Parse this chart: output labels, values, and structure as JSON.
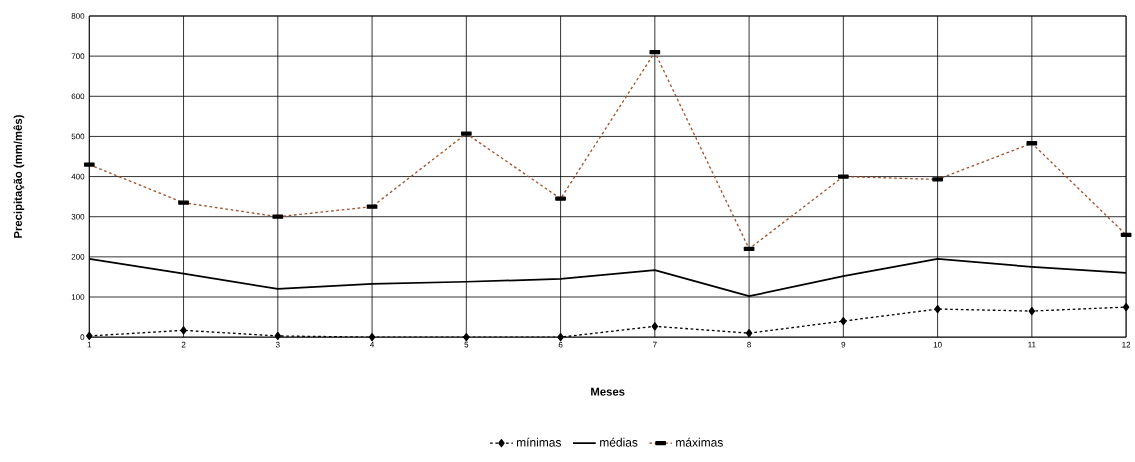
{
  "chart_data": {
    "type": "line",
    "xlabel": "Meses",
    "ylabel": "Precipitação (mm/mês)",
    "x": [
      1,
      2,
      3,
      4,
      5,
      6,
      7,
      8,
      9,
      10,
      11,
      12
    ],
    "xlim": [
      1,
      12
    ],
    "xticks": [
      1,
      2,
      3,
      4,
      5,
      6,
      7,
      8,
      9,
      10,
      11,
      12
    ],
    "ylim": [
      0,
      800
    ],
    "yticks": [
      0,
      100,
      200,
      300,
      400,
      500,
      600,
      700,
      800
    ],
    "grid": true,
    "legend": "bottom",
    "series": [
      {
        "name": "mínimas",
        "color": "#000000",
        "marker": "diamond",
        "line_style": "dotted",
        "values": [
          3,
          17,
          3,
          0,
          0,
          0,
          27,
          10,
          40,
          70,
          65,
          75
        ]
      },
      {
        "name": "médias",
        "color": "#000000",
        "marker": "none",
        "line_style": "solid",
        "values": [
          195,
          158,
          120,
          133,
          138,
          145,
          167,
          102,
          152,
          195,
          175,
          160
        ]
      },
      {
        "name": "máximas",
        "color": "#a0522d",
        "marker": "square",
        "line_style": "dotted",
        "values": [
          430,
          335,
          300,
          325,
          507,
          345,
          710,
          220,
          400,
          393,
          483,
          255
        ]
      }
    ]
  }
}
